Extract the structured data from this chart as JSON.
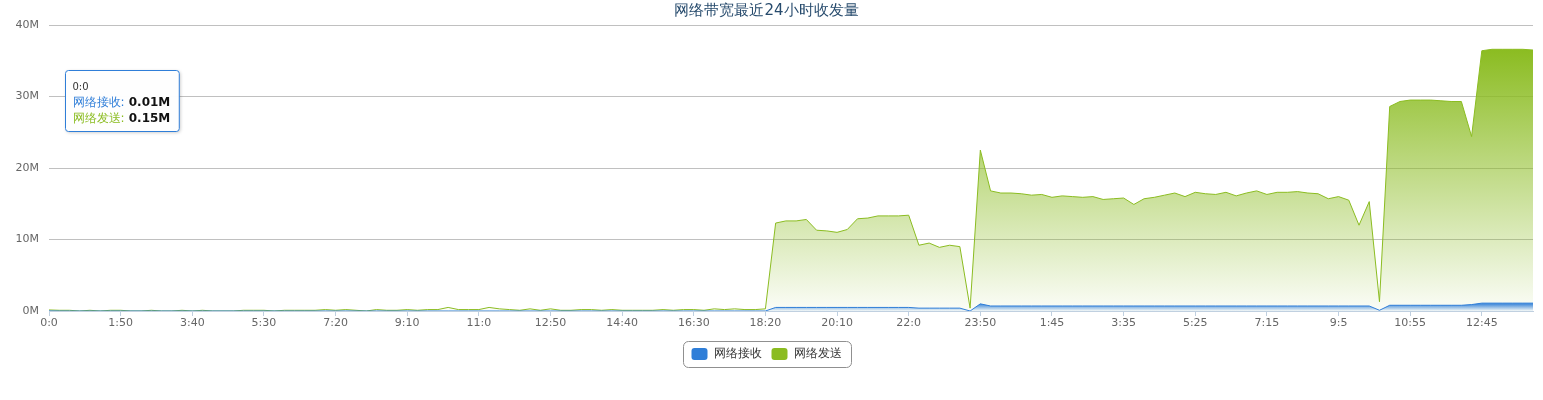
{
  "chart_data": {
    "type": "area",
    "title": "网络带宽最近24小时收发量",
    "categories": [
      "0:0",
      null,
      null,
      null,
      null,
      null,
      null,
      "1:50",
      null,
      null,
      null,
      null,
      null,
      null,
      "3:40",
      null,
      null,
      null,
      null,
      null,
      null,
      "5:30",
      null,
      null,
      null,
      null,
      null,
      null,
      "7:20",
      null,
      null,
      null,
      null,
      null,
      null,
      "9:10",
      null,
      null,
      null,
      null,
      null,
      null,
      "11:0",
      null,
      null,
      null,
      null,
      null,
      null,
      "12:50",
      null,
      null,
      null,
      null,
      null,
      null,
      "14:40",
      null,
      null,
      null,
      null,
      null,
      null,
      "16:30",
      null,
      null,
      null,
      null,
      null,
      null,
      "18:20",
      null,
      null,
      null,
      null,
      null,
      null,
      "20:10",
      null,
      null,
      null,
      null,
      null,
      null,
      "22:0",
      null,
      null,
      null,
      null,
      null,
      null,
      "23:50",
      null,
      null,
      null,
      null,
      null,
      null,
      "1:45",
      null,
      null,
      null,
      null,
      null,
      null,
      "3:35",
      null,
      null,
      null,
      null,
      null,
      null,
      "5:25",
      null,
      null,
      null,
      null,
      null,
      null,
      "7:15",
      null,
      null,
      null,
      null,
      null,
      null,
      "9:5",
      null,
      null,
      null,
      null,
      null,
      null,
      "10:55",
      null,
      null,
      null,
      null,
      null,
      null,
      "12:45",
      null,
      null,
      null,
      null,
      null
    ],
    "series": [
      {
        "name": "网络接收",
        "color": "#2f7ed8",
        "values": [
          0.01,
          0,
          0,
          0,
          0,
          0,
          0,
          0,
          0,
          0,
          0,
          0,
          0,
          0,
          0,
          0,
          0,
          0,
          0,
          0,
          0,
          0,
          0,
          0,
          0,
          0,
          0,
          0,
          0,
          0,
          0,
          0,
          0,
          0,
          0,
          0,
          0,
          0,
          0,
          0,
          0,
          0,
          0,
          0,
          0,
          0,
          0,
          0,
          0,
          0,
          0,
          0,
          0,
          0,
          0,
          0,
          0,
          0,
          0,
          0,
          0,
          0,
          0,
          0,
          0,
          0,
          0,
          0,
          0,
          0,
          0,
          0.5,
          0.5,
          0.5,
          0.5,
          0.5,
          0.5,
          0.5,
          0.5,
          0.5,
          0.5,
          0.5,
          0.5,
          0.5,
          0.5,
          0.4,
          0.4,
          0.4,
          0.4,
          0.4,
          0,
          1.0,
          0.7,
          0.7,
          0.7,
          0.7,
          0.7,
          0.7,
          0.7,
          0.7,
          0.7,
          0.7,
          0.7,
          0.7,
          0.7,
          0.7,
          0.7,
          0.7,
          0.7,
          0.7,
          0.7,
          0.7,
          0.7,
          0.7,
          0.7,
          0.7,
          0.7,
          0.7,
          0.7,
          0.7,
          0.7,
          0.7,
          0.7,
          0.7,
          0.7,
          0.7,
          0.7,
          0.7,
          0.7,
          0.7,
          0.1,
          0.8,
          0.8,
          0.8,
          0.8,
          0.8,
          0.8,
          0.8,
          0.8,
          0.9,
          1.1,
          1.1,
          1.1,
          1.1,
          1.1,
          1.1
        ]
      },
      {
        "name": "网络发送",
        "color": "#8bbc21",
        "values": [
          0.15,
          0.1,
          0.1,
          0,
          0.1,
          0,
          0.1,
          0.1,
          0,
          0,
          0.1,
          0,
          0,
          0.1,
          0,
          0.1,
          0,
          0,
          0,
          0.1,
          0.1,
          0.1,
          0,
          0.1,
          0.1,
          0.1,
          0.1,
          0.2,
          0.1,
          0.2,
          0.1,
          0,
          0.2,
          0.1,
          0.1,
          0.2,
          0.1,
          0.2,
          0.2,
          0.5,
          0.2,
          0.2,
          0.2,
          0.5,
          0.3,
          0.2,
          0.1,
          0.3,
          0.1,
          0.3,
          0.1,
          0.1,
          0.2,
          0.2,
          0.1,
          0.2,
          0.1,
          0.1,
          0.1,
          0.1,
          0.2,
          0.1,
          0.2,
          0.2,
          0.1,
          0.3,
          0.2,
          0.3,
          0.2,
          0.2,
          0.3,
          12.3,
          12.6,
          12.6,
          12.8,
          11.3,
          11.2,
          11.0,
          11.4,
          12.9,
          13.0,
          13.3,
          13.3,
          13.3,
          13.4,
          9.2,
          9.5,
          8.9,
          9.2,
          9.0,
          0.4,
          22.5,
          16.8,
          16.5,
          16.5,
          16.4,
          16.2,
          16.3,
          15.9,
          16.1,
          16.0,
          15.9,
          16.0,
          15.6,
          15.7,
          15.8,
          14.9,
          15.7,
          15.9,
          16.2,
          16.5,
          16.0,
          16.6,
          16.4,
          16.3,
          16.6,
          16.1,
          16.5,
          16.8,
          16.3,
          16.6,
          16.6,
          16.7,
          16.5,
          16.4,
          15.7,
          16.0,
          15.5,
          12.0,
          15.3,
          1.3,
          28.6,
          29.3,
          29.5,
          29.5,
          29.5,
          29.4,
          29.3,
          29.3,
          24.4,
          36.4,
          36.6,
          36.6,
          36.6,
          36.6,
          36.5
        ]
      }
    ],
    "ylim": [
      0,
      40
    ],
    "yticks": [
      {
        "value": 0,
        "label": "0M"
      },
      {
        "value": 10,
        "label": "10M"
      },
      {
        "value": 20,
        "label": "20M"
      },
      {
        "value": 30,
        "label": "30M"
      },
      {
        "value": 40,
        "label": "40M"
      }
    ],
    "grid": "y",
    "legend": "bottom",
    "marker": "none",
    "annotations": [
      "0:0",
      "网络接收: 0.01M",
      "网络发送: 0.15M"
    ]
  }
}
